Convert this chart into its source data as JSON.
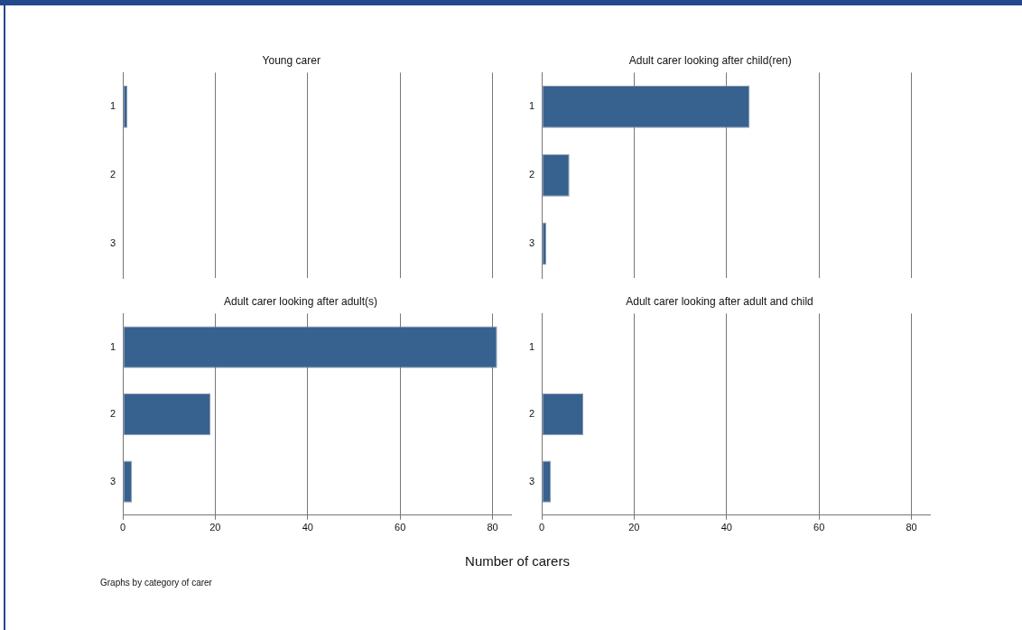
{
  "chart_data": [
    {
      "type": "bar",
      "orientation": "horizontal",
      "title": "Young carer",
      "categories": [
        "1",
        "2",
        "3"
      ],
      "values": [
        1,
        null,
        null
      ],
      "color": "#37618f",
      "xlim": [
        0,
        80
      ],
      "xticks": [
        0,
        20,
        40,
        60,
        80
      ],
      "grid": "x",
      "tick_labels": "y"
    },
    {
      "type": "bar",
      "orientation": "horizontal",
      "title": "Adult carer looking after child(ren)",
      "categories": [
        "1",
        "2",
        "3"
      ],
      "values": [
        45,
        6,
        1
      ],
      "color": "#37618f",
      "xlim": [
        0,
        80
      ],
      "xticks": [
        0,
        20,
        40,
        60,
        80
      ],
      "grid": "x",
      "tick_labels": "y"
    },
    {
      "type": "bar",
      "orientation": "horizontal",
      "title": "Adult carer looking after adult(s)",
      "categories": [
        "1",
        "2",
        "3"
      ],
      "values": [
        81,
        19,
        2
      ],
      "color": "#37618f",
      "xlim": [
        0,
        84
      ],
      "xticks": [
        0,
        20,
        40,
        60,
        80
      ],
      "grid": "x",
      "xlabel": "Number of carers",
      "annotations": [
        "Graphs by category of carer"
      ]
    },
    {
      "type": "bar",
      "orientation": "horizontal",
      "title": "Adult carer looking after adult and child",
      "categories": [
        "1",
        "2",
        "3"
      ],
      "values": [
        null,
        9,
        2
      ],
      "color": "#37618f",
      "xlim": [
        0,
        84
      ],
      "xticks": [
        0,
        20,
        40,
        60,
        80
      ],
      "grid": "x"
    }
  ]
}
